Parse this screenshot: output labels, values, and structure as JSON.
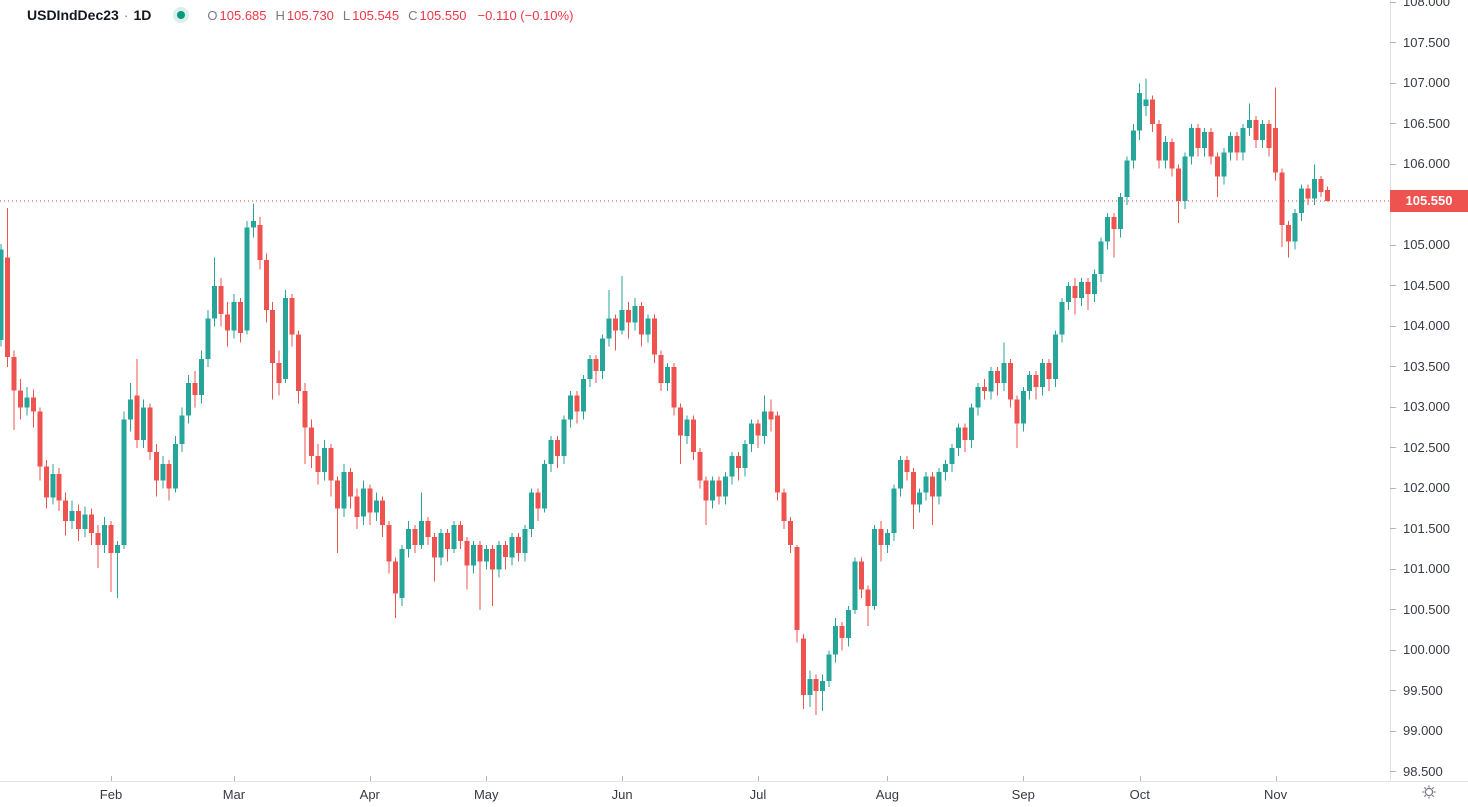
{
  "header": {
    "symbol": "USDIndDec23",
    "separator": "·",
    "interval": "1D",
    "ohlc": [
      {
        "label": "O",
        "value": "105.685"
      },
      {
        "label": "H",
        "value": "105.730"
      },
      {
        "label": "L",
        "value": "105.545"
      },
      {
        "label": "C",
        "value": "105.550"
      }
    ],
    "change": "−0.110 (−0.10%)"
  },
  "price_axis": {
    "labels": [
      "108.000",
      "107.500",
      "107.000",
      "106.500",
      "106.000",
      "105.000",
      "104.500",
      "104.000",
      "103.500",
      "103.000",
      "102.500",
      "102.000",
      "101.500",
      "101.000",
      "100.500",
      "100.000",
      "99.500",
      "99.000",
      "98.500"
    ],
    "last_price_label": "105.550"
  },
  "time_axis": {
    "months": [
      {
        "label": "Feb",
        "index": 17
      },
      {
        "label": "Mar",
        "index": 36
      },
      {
        "label": "Apr",
        "index": 57
      },
      {
        "label": "May",
        "index": 75
      },
      {
        "label": "Jun",
        "index": 96
      },
      {
        "label": "Jul",
        "index": 117
      },
      {
        "label": "Aug",
        "index": 137
      },
      {
        "label": "Sep",
        "index": 158
      },
      {
        "label": "Oct",
        "index": 176
      },
      {
        "label": "Nov",
        "index": 197
      }
    ]
  },
  "colors": {
    "up": "#26a69a",
    "down": "#ef5350",
    "accent_red": "#f23645",
    "text_dark": "#131722",
    "text_gray": "#787b86",
    "axis_text": "#363a45",
    "border": "#e0e3eb",
    "tick": "#b2b5be",
    "icon": "#787b86",
    "status_core": "#089981",
    "status_halo": "#ddefeb",
    "background": "#ffffff"
  },
  "chart_data": {
    "type": "candlestick",
    "title": "USDIndDec23",
    "interval": "1D",
    "last_bar": {
      "open": 105.685,
      "high": 105.73,
      "low": 105.545,
      "close": 105.55,
      "change": -0.11,
      "change_pct": -0.1
    },
    "current_price": 105.55,
    "y_axis_range": [
      98.39,
      108.03
    ],
    "y_tick_step": 0.5,
    "grid": false,
    "categories": [
      "Feb",
      "Mar",
      "Apr",
      "May",
      "Jun",
      "Jul",
      "Aug",
      "Sep",
      "Oct",
      "Nov"
    ],
    "candles": [
      [
        103.83,
        105.02,
        103.75,
        104.95
      ],
      [
        104.85,
        105.46,
        103.5,
        103.62
      ],
      [
        103.62,
        103.7,
        102.72,
        103.21
      ],
      [
        103.21,
        103.35,
        102.85,
        103.0
      ],
      [
        103.0,
        103.25,
        102.9,
        103.12
      ],
      [
        103.12,
        103.22,
        102.75,
        102.95
      ],
      [
        102.95,
        103.0,
        102.1,
        102.27
      ],
      [
        102.27,
        102.35,
        101.75,
        101.89
      ],
      [
        101.89,
        102.3,
        101.8,
        102.18
      ],
      [
        102.18,
        102.25,
        101.72,
        101.85
      ],
      [
        101.85,
        101.95,
        101.42,
        101.6
      ],
      [
        101.6,
        101.85,
        101.5,
        101.72
      ],
      [
        101.72,
        101.8,
        101.35,
        101.5
      ],
      [
        101.5,
        101.78,
        101.4,
        101.68
      ],
      [
        101.68,
        101.75,
        101.3,
        101.45
      ],
      [
        101.45,
        101.55,
        101.02,
        101.3
      ],
      [
        101.3,
        101.65,
        101.2,
        101.55
      ],
      [
        101.55,
        101.6,
        100.72,
        101.2
      ],
      [
        101.2,
        101.35,
        100.65,
        101.3
      ],
      [
        101.3,
        102.95,
        101.25,
        102.85
      ],
      [
        102.85,
        103.3,
        102.7,
        103.1
      ],
      [
        103.15,
        103.6,
        102.5,
        102.6
      ],
      [
        102.6,
        103.1,
        102.5,
        103.0
      ],
      [
        103.0,
        103.05,
        102.35,
        102.45
      ],
      [
        102.45,
        102.55,
        101.9,
        102.1
      ],
      [
        102.1,
        102.4,
        102.0,
        102.3
      ],
      [
        102.3,
        102.35,
        101.85,
        102.0
      ],
      [
        102.0,
        102.65,
        101.95,
        102.55
      ],
      [
        102.55,
        103.0,
        102.45,
        102.9
      ],
      [
        102.9,
        103.4,
        102.8,
        103.3
      ],
      [
        103.3,
        103.45,
        103.0,
        103.15
      ],
      [
        103.15,
        103.7,
        103.05,
        103.6
      ],
      [
        103.6,
        104.2,
        103.5,
        104.1
      ],
      [
        104.1,
        104.85,
        104.0,
        104.5
      ],
      [
        104.5,
        104.6,
        104.0,
        104.15
      ],
      [
        104.15,
        104.3,
        103.75,
        103.95
      ],
      [
        103.95,
        104.4,
        103.85,
        104.3
      ],
      [
        104.3,
        104.35,
        103.8,
        103.92
      ],
      [
        103.95,
        105.3,
        103.9,
        105.22
      ],
      [
        105.22,
        105.52,
        105.1,
        105.3
      ],
      [
        105.25,
        105.35,
        104.7,
        104.82
      ],
      [
        104.82,
        104.9,
        104.05,
        104.2
      ],
      [
        104.2,
        104.3,
        103.1,
        103.55
      ],
      [
        103.55,
        103.7,
        103.15,
        103.3
      ],
      [
        103.35,
        104.45,
        103.3,
        104.35
      ],
      [
        104.35,
        104.4,
        103.75,
        103.9
      ],
      [
        103.9,
        103.95,
        103.05,
        103.2
      ],
      [
        103.2,
        103.3,
        102.3,
        102.75
      ],
      [
        102.75,
        102.85,
        102.25,
        102.4
      ],
      [
        102.4,
        102.55,
        102.05,
        102.2
      ],
      [
        102.2,
        102.6,
        102.1,
        102.5
      ],
      [
        102.5,
        102.55,
        101.9,
        102.1
      ],
      [
        102.1,
        102.15,
        101.2,
        101.75
      ],
      [
        101.75,
        102.3,
        101.65,
        102.2
      ],
      [
        102.2,
        102.25,
        101.75,
        101.9
      ],
      [
        101.9,
        102.0,
        101.5,
        101.65
      ],
      [
        101.65,
        102.1,
        101.55,
        102.0
      ],
      [
        102.0,
        102.05,
        101.55,
        101.7
      ],
      [
        101.7,
        101.95,
        101.6,
        101.85
      ],
      [
        101.85,
        101.9,
        101.4,
        101.55
      ],
      [
        101.55,
        101.6,
        100.95,
        101.1
      ],
      [
        101.1,
        101.15,
        100.4,
        100.7
      ],
      [
        100.65,
        101.3,
        100.55,
        101.25
      ],
      [
        101.25,
        101.6,
        101.15,
        101.5
      ],
      [
        101.5,
        101.55,
        101.2,
        101.3
      ],
      [
        101.3,
        101.95,
        101.25,
        101.6
      ],
      [
        101.6,
        101.65,
        101.3,
        101.4
      ],
      [
        101.4,
        101.45,
        100.85,
        101.15
      ],
      [
        101.15,
        101.5,
        101.05,
        101.45
      ],
      [
        101.45,
        101.5,
        101.1,
        101.25
      ],
      [
        101.25,
        101.6,
        101.2,
        101.55
      ],
      [
        101.55,
        101.6,
        101.25,
        101.35
      ],
      [
        101.35,
        101.4,
        100.75,
        101.05
      ],
      [
        101.05,
        101.35,
        100.95,
        101.3
      ],
      [
        101.3,
        101.35,
        100.5,
        101.1
      ],
      [
        101.1,
        101.3,
        101.0,
        101.25
      ],
      [
        101.25,
        101.3,
        100.55,
        101.0
      ],
      [
        101.0,
        101.35,
        100.9,
        101.3
      ],
      [
        101.3,
        101.35,
        101.0,
        101.15
      ],
      [
        101.15,
        101.45,
        101.05,
        101.4
      ],
      [
        101.4,
        101.45,
        101.1,
        101.2
      ],
      [
        101.2,
        101.55,
        101.1,
        101.5
      ],
      [
        101.5,
        102.0,
        101.4,
        101.95
      ],
      [
        101.95,
        102.0,
        101.6,
        101.75
      ],
      [
        101.75,
        102.35,
        101.7,
        102.3
      ],
      [
        102.3,
        102.65,
        102.2,
        102.6
      ],
      [
        102.6,
        102.65,
        102.25,
        102.4
      ],
      [
        102.4,
        102.9,
        102.3,
        102.85
      ],
      [
        102.85,
        103.2,
        102.75,
        103.15
      ],
      [
        103.15,
        103.2,
        102.8,
        102.95
      ],
      [
        102.95,
        103.4,
        102.85,
        103.35
      ],
      [
        103.35,
        103.65,
        103.25,
        103.6
      ],
      [
        103.6,
        103.65,
        103.3,
        103.45
      ],
      [
        103.45,
        103.9,
        103.35,
        103.85
      ],
      [
        103.85,
        104.45,
        103.75,
        104.1
      ],
      [
        104.1,
        104.15,
        103.7,
        103.95
      ],
      [
        103.95,
        104.62,
        103.9,
        104.2
      ],
      [
        104.2,
        104.3,
        103.85,
        104.05
      ],
      [
        104.05,
        104.35,
        103.95,
        104.25
      ],
      [
        104.25,
        104.3,
        103.75,
        103.9
      ],
      [
        103.9,
        104.15,
        103.8,
        104.1
      ],
      [
        104.1,
        104.15,
        103.55,
        103.65
      ],
      [
        103.65,
        103.7,
        103.2,
        103.3
      ],
      [
        103.3,
        103.55,
        103.2,
        103.5
      ],
      [
        103.5,
        103.55,
        102.9,
        103.0
      ],
      [
        103.0,
        103.05,
        102.3,
        102.65
      ],
      [
        102.65,
        102.9,
        102.55,
        102.85
      ],
      [
        102.85,
        102.9,
        102.35,
        102.45
      ],
      [
        102.45,
        102.5,
        102.0,
        102.1
      ],
      [
        102.1,
        102.15,
        101.55,
        101.85
      ],
      [
        101.85,
        102.15,
        101.75,
        102.1
      ],
      [
        102.1,
        102.15,
        101.8,
        101.9
      ],
      [
        101.9,
        102.2,
        101.8,
        102.15
      ],
      [
        102.15,
        102.45,
        102.05,
        102.4
      ],
      [
        102.4,
        102.45,
        102.1,
        102.25
      ],
      [
        102.25,
        102.6,
        102.15,
        102.55
      ],
      [
        102.55,
        102.85,
        102.45,
        102.8
      ],
      [
        102.8,
        102.85,
        102.5,
        102.65
      ],
      [
        102.65,
        103.15,
        102.55,
        102.95
      ],
      [
        102.95,
        103.1,
        102.7,
        102.85
      ],
      [
        102.9,
        102.95,
        101.85,
        101.95
      ],
      [
        101.95,
        102.0,
        101.5,
        101.6
      ],
      [
        101.6,
        101.65,
        101.2,
        101.3
      ],
      [
        101.28,
        101.3,
        100.1,
        100.25
      ],
      [
        100.15,
        100.2,
        99.28,
        99.45
      ],
      [
        99.45,
        99.75,
        99.3,
        99.65
      ],
      [
        99.65,
        99.7,
        99.2,
        99.5
      ],
      [
        99.5,
        99.7,
        99.25,
        99.62
      ],
      [
        99.62,
        100.0,
        99.55,
        99.95
      ],
      [
        99.95,
        100.4,
        99.85,
        100.3
      ],
      [
        100.3,
        100.35,
        100.0,
        100.15
      ],
      [
        100.15,
        100.55,
        100.05,
        100.5
      ],
      [
        100.5,
        101.15,
        100.45,
        101.1
      ],
      [
        101.1,
        101.15,
        100.65,
        100.75
      ],
      [
        100.75,
        100.8,
        100.3,
        100.55
      ],
      [
        100.55,
        101.55,
        100.5,
        101.5
      ],
      [
        101.5,
        101.6,
        101.1,
        101.3
      ],
      [
        101.3,
        101.5,
        101.2,
        101.45
      ],
      [
        101.45,
        102.05,
        101.35,
        102.0
      ],
      [
        102.0,
        102.4,
        101.9,
        102.35
      ],
      [
        102.35,
        102.4,
        102.1,
        102.2
      ],
      [
        102.2,
        102.25,
        101.5,
        101.8
      ],
      [
        101.8,
        102.0,
        101.7,
        101.95
      ],
      [
        101.95,
        102.2,
        101.85,
        102.15
      ],
      [
        102.15,
        102.2,
        101.55,
        101.9
      ],
      [
        101.9,
        102.25,
        101.8,
        102.2
      ],
      [
        102.2,
        102.35,
        102.1,
        102.3
      ],
      [
        102.3,
        102.55,
        102.2,
        102.5
      ],
      [
        102.5,
        102.8,
        102.4,
        102.75
      ],
      [
        102.75,
        102.8,
        102.45,
        102.6
      ],
      [
        102.6,
        103.05,
        102.5,
        103.0
      ],
      [
        103.0,
        103.3,
        102.9,
        103.25
      ],
      [
        103.25,
        103.35,
        103.1,
        103.2
      ],
      [
        103.2,
        103.5,
        103.1,
        103.45
      ],
      [
        103.45,
        103.5,
        103.15,
        103.3
      ],
      [
        103.3,
        103.8,
        103.2,
        103.55
      ],
      [
        103.55,
        103.6,
        103.0,
        103.1
      ],
      [
        103.1,
        103.15,
        102.5,
        102.8
      ],
      [
        102.8,
        103.25,
        102.7,
        103.2
      ],
      [
        103.2,
        103.45,
        103.1,
        103.4
      ],
      [
        103.4,
        103.45,
        103.1,
        103.25
      ],
      [
        103.25,
        103.6,
        103.15,
        103.55
      ],
      [
        103.55,
        103.6,
        103.2,
        103.35
      ],
      [
        103.35,
        103.95,
        103.25,
        103.9
      ],
      [
        103.9,
        104.35,
        103.8,
        104.3
      ],
      [
        104.3,
        104.55,
        104.2,
        104.5
      ],
      [
        104.5,
        104.6,
        104.15,
        104.35
      ],
      [
        104.35,
        104.6,
        104.25,
        104.55
      ],
      [
        104.55,
        104.6,
        104.2,
        104.4
      ],
      [
        104.4,
        104.7,
        104.3,
        104.65
      ],
      [
        104.65,
        105.1,
        104.55,
        105.05
      ],
      [
        105.05,
        105.4,
        104.95,
        105.35
      ],
      [
        105.35,
        105.4,
        104.85,
        105.2
      ],
      [
        105.2,
        105.65,
        105.1,
        105.6
      ],
      [
        105.6,
        106.1,
        105.5,
        106.05
      ],
      [
        106.05,
        106.5,
        105.95,
        106.42
      ],
      [
        106.42,
        107.0,
        106.3,
        106.88
      ],
      [
        106.72,
        107.06,
        106.6,
        106.8
      ],
      [
        106.8,
        106.85,
        106.4,
        106.5
      ],
      [
        106.5,
        106.55,
        105.95,
        106.05
      ],
      [
        106.05,
        106.35,
        105.95,
        106.28
      ],
      [
        106.28,
        106.32,
        105.85,
        105.95
      ],
      [
        105.95,
        106.0,
        105.28,
        105.55
      ],
      [
        105.55,
        106.15,
        105.45,
        106.1
      ],
      [
        106.1,
        106.5,
        106.0,
        106.45
      ],
      [
        106.45,
        106.5,
        106.1,
        106.2
      ],
      [
        106.2,
        106.45,
        106.1,
        106.4
      ],
      [
        106.4,
        106.45,
        106.0,
        106.1
      ],
      [
        106.1,
        106.15,
        105.6,
        105.85
      ],
      [
        105.85,
        106.2,
        105.75,
        106.15
      ],
      [
        106.15,
        106.4,
        106.05,
        106.35
      ],
      [
        106.35,
        106.4,
        106.05,
        106.15
      ],
      [
        106.15,
        106.5,
        106.05,
        106.45
      ],
      [
        106.45,
        106.75,
        106.35,
        106.55
      ],
      [
        106.55,
        106.6,
        106.2,
        106.3
      ],
      [
        106.3,
        106.55,
        106.2,
        106.5
      ],
      [
        106.5,
        106.55,
        106.1,
        106.2
      ],
      [
        106.45,
        106.95,
        105.8,
        105.9
      ],
      [
        105.9,
        105.95,
        104.98,
        105.25
      ],
      [
        105.25,
        105.3,
        104.85,
        105.05
      ],
      [
        105.05,
        105.45,
        104.95,
        105.4
      ],
      [
        105.4,
        105.75,
        105.3,
        105.7
      ],
      [
        105.7,
        105.75,
        105.5,
        105.58
      ],
      [
        105.58,
        106.0,
        105.5,
        105.82
      ],
      [
        105.82,
        105.86,
        105.6,
        105.66
      ],
      [
        105.685,
        105.73,
        105.545,
        105.55
      ]
    ]
  }
}
